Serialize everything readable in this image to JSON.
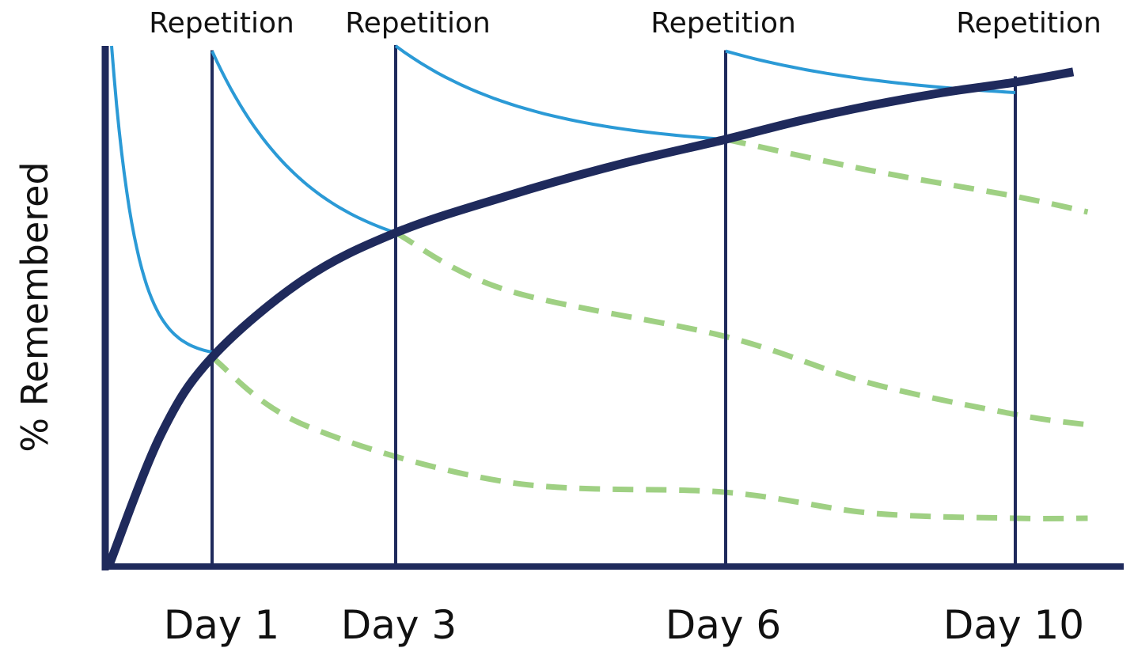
{
  "chart_data": {
    "type": "line",
    "title": "",
    "xlabel": "",
    "ylabel": "% Remembered",
    "grid": false,
    "legend": "none",
    "repetition_label": "Repetition",
    "ticks": [
      {
        "day": 1,
        "label": "Day 1"
      },
      {
        "day": 3,
        "label": "Day 3"
      },
      {
        "day": 6,
        "label": "Day 6"
      },
      {
        "day": 10,
        "label": "Day 10"
      }
    ],
    "repetitions": [
      {
        "day": 1,
        "label": "Repetition",
        "peak": 99,
        "trough": 39
      },
      {
        "day": 3,
        "label": "Repetition",
        "peak": 100,
        "trough": 64
      },
      {
        "day": 6,
        "label": "Repetition",
        "peak": 99,
        "trough": 82
      },
      {
        "day": 10,
        "label": "Repetition",
        "peak": 94,
        "trough": 91
      }
    ],
    "initial_forgetting": {
      "start": 100,
      "end": 41
    },
    "memory_strength_curve": [
      [
        0,
        0
      ],
      [
        0.5,
        25
      ],
      [
        1,
        40
      ],
      [
        2,
        55
      ],
      [
        3,
        64
      ],
      [
        4,
        71
      ],
      [
        5,
        77
      ],
      [
        6,
        82
      ],
      [
        7,
        85.5
      ],
      [
        8,
        88.5
      ],
      [
        9,
        91
      ],
      [
        10,
        93
      ],
      [
        10.8,
        95
      ]
    ],
    "forgetting_after_repetition": [
      {
        "from_day": 1,
        "values": [
          [
            1,
            40
          ],
          [
            2,
            27
          ],
          [
            4,
            16
          ],
          [
            6,
            14
          ],
          [
            8,
            10
          ],
          [
            10,
            9
          ],
          [
            11,
            9
          ]
        ]
      },
      {
        "from_day": 3,
        "values": [
          [
            3,
            64
          ],
          [
            4,
            53
          ],
          [
            6,
            44
          ],
          [
            8,
            35
          ],
          [
            10,
            29
          ],
          [
            11,
            27
          ]
        ]
      },
      {
        "from_day": 6,
        "values": [
          [
            6,
            82
          ],
          [
            8,
            76
          ],
          [
            10,
            71
          ],
          [
            11,
            68
          ]
        ]
      }
    ],
    "colors": {
      "axis": "#1f2a5c",
      "strength_curve": "#1f2a5c",
      "repetition_line": "#1f2a5c",
      "retention_curve": "#2b9ad6",
      "forgetting_dashed": "#9fd083",
      "text": "#111111"
    }
  }
}
